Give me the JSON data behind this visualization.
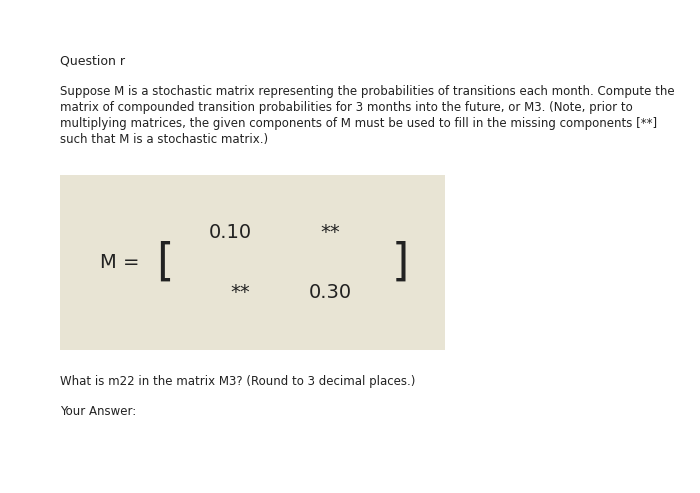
{
  "title": "Question r",
  "body_line1": "Suppose M is a stochastic matrix representing the probabilities of transitions each month. Compute the",
  "body_line2": "matrix of compounded transition probabilities for 3 months into the future, or M3. (Note, prior to",
  "body_line3": "multiplying matrices, the given components of M must be used to fill in the missing components [**]",
  "body_line4": "such that M is a stochastic matrix.)",
  "matrix_label": "M =",
  "matrix_row1_col1": "0.10",
  "matrix_row1_col2": "**",
  "matrix_row2_col1": "**",
  "matrix_row2_col2": "0.30",
  "question_text": "What is m22 in the matrix M3? (Round to 3 decimal places.)",
  "answer_label": "Your Answer:",
  "bg_color": "#ffffff",
  "matrix_bg_color": "#e8e4d4",
  "text_color": "#222222",
  "title_fontsize": 9,
  "body_fontsize": 8.5,
  "matrix_label_fontsize": 14,
  "matrix_value_fontsize": 14,
  "bracket_fontsize": 32,
  "question_fontsize": 8.5,
  "answer_fontsize": 8.5
}
